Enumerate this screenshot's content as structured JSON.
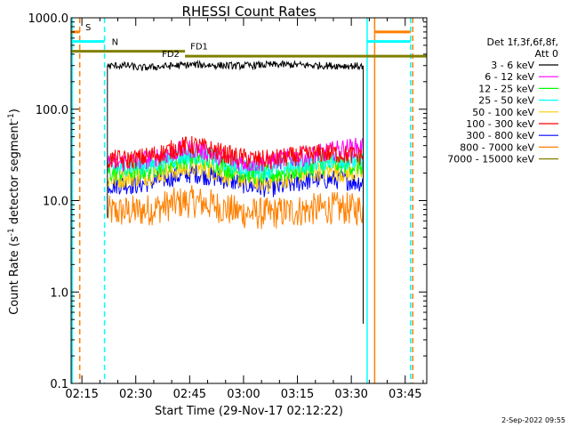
{
  "chart_data": {
    "type": "line",
    "title": "RHESSI Count Rates",
    "xlabel": "Start Time (29-Nov-17 02:12:22)",
    "ylabel_main": "Count Rate (s",
    "ylabel_sup1": "-1",
    "ylabel_mid": " detector segment",
    "ylabel_sup2": "-1",
    "ylabel_end": ")",
    "y_scale": "log",
    "ylim": [
      0.1,
      1000
    ],
    "y_ticks": [
      {
        "value": 1000,
        "label": "1000.0"
      },
      {
        "value": 100,
        "label": "100.0"
      },
      {
        "value": 10,
        "label": "10.0"
      },
      {
        "value": 1,
        "label": "1.0"
      },
      {
        "value": 0.1,
        "label": "0.1"
      }
    ],
    "xlim_minutes": [
      132,
      231
    ],
    "x_ticks": [
      {
        "value": 135,
        "label": "02:15"
      },
      {
        "value": 150,
        "label": "02:30"
      },
      {
        "value": 165,
        "label": "02:45"
      },
      {
        "value": 180,
        "label": "03:00"
      },
      {
        "value": 195,
        "label": "03:15"
      },
      {
        "value": 210,
        "label": "03:30"
      },
      {
        "value": 225,
        "label": "03:45"
      }
    ],
    "legend_placement": "outside-right",
    "legend_header": [
      "Det 1f,3f,6f,8f,",
      "Att 0"
    ],
    "series": [
      {
        "name": "3 - 6 keV",
        "color": "#000000",
        "x": [
          142.1,
          145,
          148,
          151,
          154,
          157,
          160,
          163,
          166,
          169,
          172,
          175,
          178,
          181,
          184,
          187,
          190,
          193,
          196,
          199,
          202,
          205,
          208,
          211,
          213.2
        ],
        "values": [
          295,
          300,
          300,
          282,
          288,
          292,
          298,
          303,
          307,
          305,
          302,
          300,
          298,
          300,
          303,
          305,
          307,
          306,
          304,
          302,
          300,
          299,
          298,
          297,
          295
        ]
      },
      {
        "name": "6 - 12 keV",
        "color": "#ff00ff",
        "x": [
          142.1,
          145,
          148,
          151,
          154,
          157,
          160,
          163,
          166,
          169,
          172,
          175,
          178,
          181,
          184,
          187,
          190,
          193,
          196,
          199,
          202,
          205,
          208,
          211,
          213.2
        ],
        "values": [
          26,
          26,
          27,
          27,
          29,
          31,
          33,
          36,
          37,
          35,
          32,
          29,
          27,
          26,
          26,
          27,
          28,
          29,
          30,
          31,
          33,
          35,
          37,
          38,
          39
        ]
      },
      {
        "name": "12 - 25 keV",
        "color": "#00ff00",
        "x": [
          142.1,
          145,
          148,
          151,
          154,
          157,
          160,
          163,
          166,
          169,
          172,
          175,
          178,
          181,
          184,
          187,
          190,
          193,
          196,
          199,
          202,
          205,
          208,
          211,
          213.2
        ],
        "values": [
          20,
          20,
          21,
          21,
          22,
          24,
          26,
          28,
          29,
          28,
          26,
          23,
          21,
          20,
          19,
          19,
          20,
          21,
          22,
          23,
          24,
          25,
          25,
          24,
          24
        ]
      },
      {
        "name": "25 - 50 keV",
        "color": "#00ffff",
        "x": [
          142.1,
          145,
          148,
          151,
          154,
          157,
          160,
          163,
          166,
          169,
          172,
          175,
          178,
          181,
          184,
          187,
          190,
          193,
          196,
          199,
          202,
          205,
          208,
          211,
          213.2
        ],
        "values": [
          23,
          23,
          24,
          24,
          25,
          27,
          29,
          31,
          32,
          31,
          29,
          26,
          24,
          23,
          22,
          22,
          23,
          24,
          25,
          26,
          27,
          28,
          28,
          27,
          27
        ]
      },
      {
        "name": "50 - 100 keV",
        "color": "#ffcc00",
        "x": [
          142.1,
          145,
          148,
          151,
          154,
          157,
          160,
          163,
          166,
          169,
          172,
          175,
          178,
          181,
          184,
          187,
          190,
          193,
          196,
          199,
          202,
          205,
          208,
          211,
          213.2
        ],
        "values": [
          17,
          17,
          18,
          18,
          19,
          20,
          21,
          22,
          23,
          22,
          21,
          19,
          18,
          17,
          16,
          16,
          17,
          18,
          19,
          20,
          21,
          21,
          20,
          20,
          20
        ]
      },
      {
        "name": "100 - 300 keV",
        "color": "#ff0000",
        "x": [
          142.1,
          145,
          148,
          151,
          154,
          157,
          160,
          163,
          166,
          169,
          172,
          175,
          178,
          181,
          184,
          187,
          190,
          193,
          196,
          199,
          202,
          205,
          208,
          211,
          213.2
        ],
        "values": [
          28,
          28,
          28,
          29,
          31,
          33,
          36,
          39,
          40,
          38,
          35,
          32,
          30,
          29,
          28,
          28,
          29,
          30,
          31,
          32,
          33,
          33,
          32,
          31,
          31
        ]
      },
      {
        "name": "300 - 800 keV",
        "color": "#0000ff",
        "x": [
          142.1,
          145,
          148,
          151,
          154,
          157,
          160,
          163,
          166,
          169,
          172,
          175,
          178,
          181,
          184,
          187,
          190,
          193,
          196,
          199,
          202,
          205,
          208,
          211,
          213.2
        ],
        "values": [
          15,
          15,
          15,
          15,
          16,
          17,
          18,
          19,
          20,
          19,
          18,
          17,
          16,
          15,
          14,
          14,
          14,
          15,
          16,
          17,
          17,
          17,
          17,
          16,
          16
        ]
      },
      {
        "name": "800 - 7000 keV",
        "color": "#ff8000",
        "x": [
          142.1,
          145,
          148,
          151,
          154,
          157,
          160,
          163,
          166,
          169,
          172,
          175,
          178,
          181,
          184,
          187,
          190,
          193,
          196,
          199,
          202,
          205,
          208,
          211,
          213.2
        ],
        "values": [
          7.5,
          7.5,
          7.6,
          7.7,
          8.0,
          8.5,
          9.1,
          9.6,
          9.8,
          9.4,
          8.8,
          8.1,
          7.6,
          7.3,
          7.2,
          7.2,
          7.4,
          7.6,
          7.8,
          8.0,
          8.2,
          8.3,
          8.2,
          8.1,
          8.0
        ]
      },
      {
        "name": "7000 - 15000 keV",
        "color": "#808000",
        "x": [],
        "values": []
      }
    ],
    "bars": [
      {
        "label": "S",
        "color": "#ff8000",
        "x_start": 132,
        "x_end": 134.4,
        "value": 700
      },
      {
        "label": "N",
        "color": "#00ffff",
        "x_start": 132,
        "x_end": 141.3,
        "value": 550
      },
      {
        "label": "FD1",
        "color": "#808000",
        "x_start": 132,
        "x_end": 163.7,
        "value": 430
      },
      {
        "label": "FD2",
        "color": "#808000",
        "x_start": 163.7,
        "x_end": 231,
        "value": 380
      },
      {
        "label": "",
        "color": "#00ffff",
        "x_start": 214.4,
        "x_end": 226.5,
        "value": 550
      },
      {
        "label": "",
        "color": "#ff8000",
        "x_start": 216.5,
        "x_end": 226.5,
        "value": 700
      }
    ],
    "vlines": [
      {
        "x": 132.3,
        "color": "#00ffff",
        "dashed": false
      },
      {
        "x": 134.4,
        "color": "#ff8000",
        "dashed": true
      },
      {
        "x": 141.3,
        "color": "#00ffff",
        "dashed": true
      },
      {
        "x": 214.4,
        "color": "#00ffff",
        "dashed": false
      },
      {
        "x": 216.5,
        "color": "#ff8000",
        "dashed": false
      },
      {
        "x": 226.5,
        "color": "#00ffff",
        "dashed": true
      },
      {
        "x": 227.1,
        "color": "#ff8000",
        "dashed": true
      }
    ],
    "spikes": [
      {
        "x": 142.1,
        "from": 6.5,
        "to": 300,
        "color": "#000000"
      },
      {
        "x": 213.3,
        "from": 0.45,
        "to": 300,
        "color": "#000000"
      }
    ],
    "footer_date": "2-Sep-2022 09:55"
  }
}
